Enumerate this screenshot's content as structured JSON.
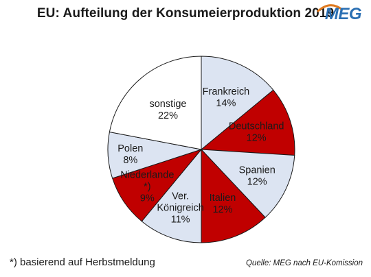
{
  "title": "EU: Aufteilung der Konsumeierproduktion 2019",
  "logo_text": "MEG",
  "footnote": "*) basierend auf Herbstmeldung",
  "source": "Quelle: MEG nach EU-Komission",
  "colors": {
    "red": "#c00000",
    "light": "#dce4f2",
    "white": "#ffffff",
    "logo": "#2a6fb3"
  },
  "chart_data": {
    "type": "pie",
    "title": "EU: Aufteilung der Konsumeierproduktion 2019",
    "slices": [
      {
        "label": "Frankreich",
        "value": 14,
        "display": "14%",
        "color": "#dce4f2",
        "text_color": "#1a1a1a"
      },
      {
        "label": "Deutschland",
        "value": 12,
        "display": "12%",
        "color": "#c00000",
        "text_color": "#ffffff"
      },
      {
        "label": "Spanien",
        "value": 12,
        "display": "12%",
        "color": "#dce4f2",
        "text_color": "#1a1a1a"
      },
      {
        "label": "Italien",
        "value": 12,
        "display": "12%",
        "color": "#c00000",
        "text_color": "#ffffff"
      },
      {
        "label": "Ver. Königreich",
        "value": 11,
        "display": "11%",
        "color": "#dce4f2",
        "text_color": "#1a1a1a"
      },
      {
        "label": "Niederlande *)",
        "value": 9,
        "display": "9%",
        "color": "#c00000",
        "text_color": "#ffffff"
      },
      {
        "label": "Polen",
        "value": 8,
        "display": "8%",
        "color": "#dce4f2",
        "text_color": "#1a1a1a"
      },
      {
        "label": "sonstige",
        "value": 22,
        "display": "22%",
        "color": "#ffffff",
        "text_color": "#1a1a1a"
      }
    ]
  }
}
